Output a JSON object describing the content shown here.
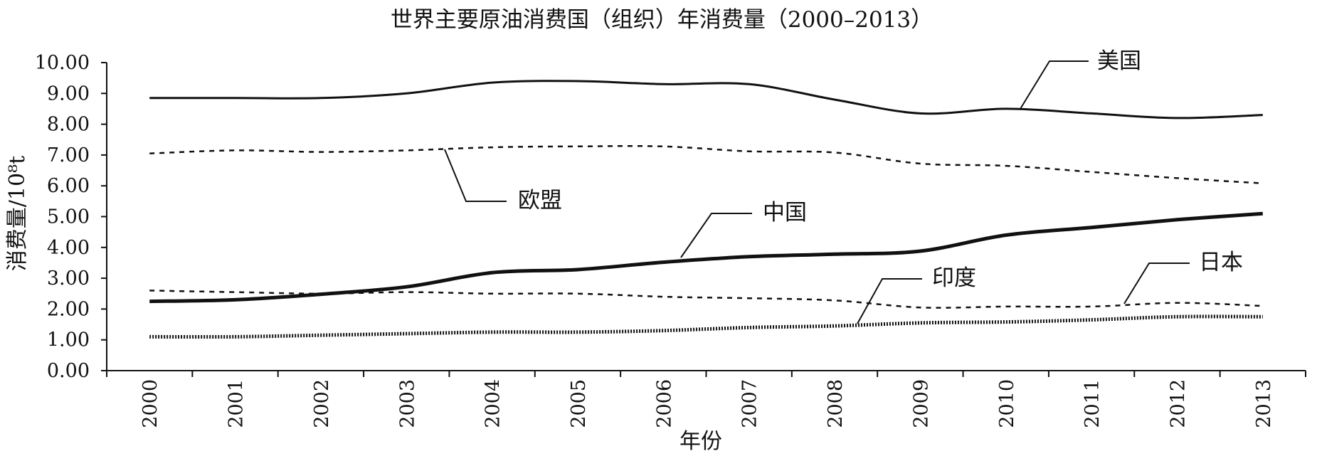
{
  "chart_data": {
    "type": "line",
    "title": "世界主要原油消费国（组织）年消费量（2000–2013）",
    "xlabel": "年份",
    "ylabel": "消费量/10⁸t",
    "ylim": [
      0,
      10
    ],
    "yticks": [
      "0.00",
      "1.00",
      "2.00",
      "3.00",
      "4.00",
      "5.00",
      "6.00",
      "7.00",
      "8.00",
      "9.00",
      "10.00"
    ],
    "x": [
      "2000",
      "2001",
      "2002",
      "2003",
      "2004",
      "2005",
      "2006",
      "2007",
      "2008",
      "2009",
      "2010",
      "2011",
      "2012",
      "2013"
    ],
    "legend": "callout labels on lines",
    "grid": false,
    "series": [
      {
        "name": "美国",
        "style": "solid",
        "values": [
          8.85,
          8.85,
          8.85,
          9.0,
          9.35,
          9.4,
          9.3,
          9.3,
          8.8,
          8.35,
          8.5,
          8.35,
          8.2,
          8.3
        ]
      },
      {
        "name": "欧盟",
        "style": "dashed",
        "values": [
          7.05,
          7.15,
          7.1,
          7.15,
          7.25,
          7.28,
          7.28,
          7.12,
          7.08,
          6.72,
          6.65,
          6.45,
          6.25,
          6.08
        ]
      },
      {
        "name": "中国",
        "style": "thick",
        "values": [
          2.25,
          2.3,
          2.48,
          2.72,
          3.18,
          3.28,
          3.52,
          3.7,
          3.78,
          3.88,
          4.4,
          4.65,
          4.9,
          5.1
        ]
      },
      {
        "name": "日本",
        "style": "dashed",
        "values": [
          2.6,
          2.55,
          2.5,
          2.55,
          2.5,
          2.5,
          2.4,
          2.35,
          2.28,
          2.05,
          2.08,
          2.08,
          2.2,
          2.1
        ]
      },
      {
        "name": "印度",
        "style": "dotted",
        "values": [
          1.1,
          1.1,
          1.15,
          1.2,
          1.25,
          1.25,
          1.3,
          1.4,
          1.45,
          1.55,
          1.58,
          1.65,
          1.75,
          1.75
        ]
      }
    ]
  }
}
